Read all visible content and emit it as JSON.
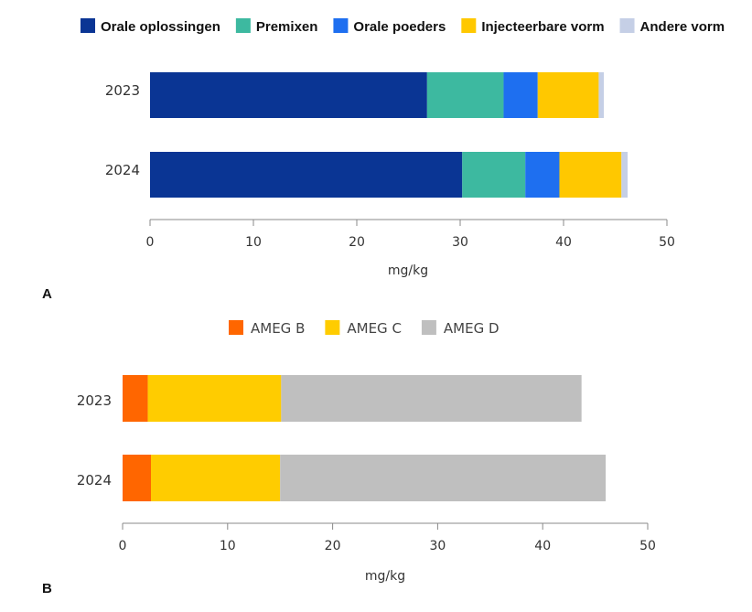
{
  "chart_data": [
    {
      "type": "bar",
      "orientation": "horizontal",
      "stacked": true,
      "panel_label": "A",
      "categories": [
        "2023",
        "2024"
      ],
      "series": [
        {
          "name": "Orale oplossingen",
          "color": "#0a3594",
          "values": [
            26.8,
            30.2
          ]
        },
        {
          "name": "Premixen",
          "color": "#3db9a0",
          "values": [
            7.4,
            6.1
          ]
        },
        {
          "name": "Orale poeders",
          "color": "#1e6ff0",
          "values": [
            3.3,
            3.3
          ]
        },
        {
          "name": "Injecteerbare vorm",
          "color": "#ffc800",
          "values": [
            5.9,
            6.0
          ]
        },
        {
          "name": "Andere vorm",
          "color": "#c5cfe6",
          "values": [
            0.5,
            0.6
          ]
        }
      ],
      "xlabel": "mg/kg",
      "xlim": [
        0,
        50
      ],
      "xticks": [
        "0",
        "10",
        "20",
        "30",
        "40",
        "50"
      ],
      "legend_position": "top",
      "grid": false
    },
    {
      "type": "bar",
      "orientation": "horizontal",
      "stacked": true,
      "panel_label": "B",
      "categories": [
        "2023",
        "2024"
      ],
      "series": [
        {
          "name": "AMEG B",
          "color": "#ff6600",
          "values": [
            2.4,
            2.7
          ]
        },
        {
          "name": "AMEG C",
          "color": "#ffcc00",
          "values": [
            12.7,
            12.3
          ]
        },
        {
          "name": "AMEG D",
          "color": "#bfbfbf",
          "values": [
            28.6,
            31.0
          ]
        }
      ],
      "xlabel": "mg/kg",
      "xlim": [
        0,
        50
      ],
      "xticks": [
        "0",
        "10",
        "20",
        "30",
        "40",
        "50"
      ],
      "legend_position": "top",
      "grid": false
    }
  ]
}
